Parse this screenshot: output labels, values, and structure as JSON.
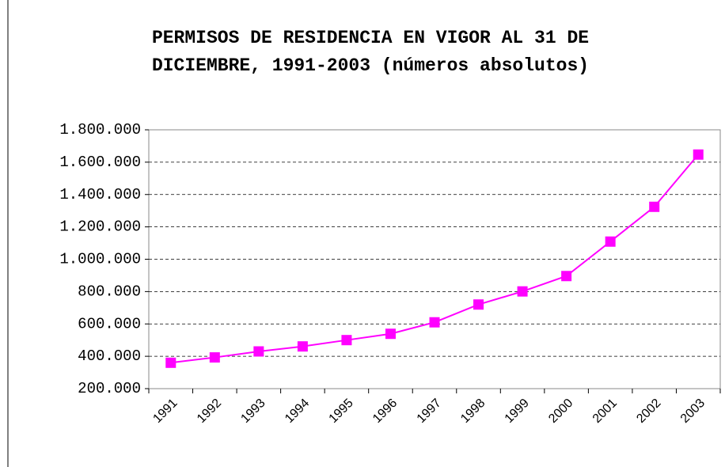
{
  "chart_data": {
    "type": "line",
    "title": [
      "PERMISOS DE RESIDENCIA EN VIGOR AL 31 DE",
      "DICIEMBRE, 1991-2003 (números absolutos)"
    ],
    "categories": [
      "1991",
      "1992",
      "1993",
      "1994",
      "1995",
      "1996",
      "1997",
      "1998",
      "1999",
      "2000",
      "2001",
      "2002",
      "2003"
    ],
    "values": [
      360000,
      393000,
      430000,
      461000,
      500000,
      539000,
      610000,
      720000,
      801000,
      896000,
      1109000,
      1324000,
      1647000
    ],
    "color": "#ff00ff",
    "ylim": [
      200000,
      1800000
    ],
    "yticks": [
      {
        "value": 200000,
        "label": "200.000"
      },
      {
        "value": 400000,
        "label": "400.000"
      },
      {
        "value": 600000,
        "label": "600.000"
      },
      {
        "value": 800000,
        "label": "800.000"
      },
      {
        "value": 1000000,
        "label": "1.000.000"
      },
      {
        "value": 1200000,
        "label": "1.200.000"
      },
      {
        "value": 1400000,
        "label": "1.400.000"
      },
      {
        "value": 1600000,
        "label": "1.600.000"
      },
      {
        "value": 1800000,
        "label": "1.800.000"
      }
    ],
    "grid": true
  }
}
